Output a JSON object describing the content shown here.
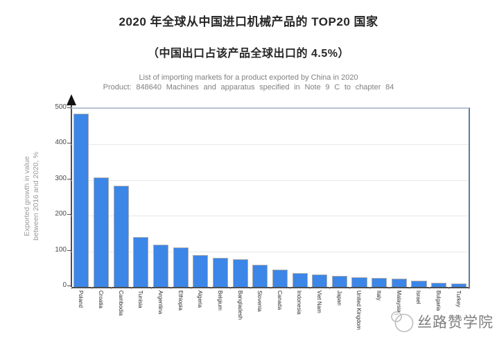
{
  "header": {
    "title": "2020 年全球从中国进口机械产品的 TOP20 国家",
    "subtitle": "（中国出口占该产品全球出口的 4.5%）"
  },
  "chart_data": {
    "type": "bar",
    "title": "List of importing markets for a product exported by China in 2020",
    "subtitle": "Product: 848640 Machines and apparatus specified in Note 9 C to chapter 84",
    "ylabel": "Exported growth in value between 2016 and 2020, %",
    "ylabel_lines": [
      "Exported growth in value",
      "between 2016 and 2020,  %"
    ],
    "categories": [
      "Poland",
      "Croatia",
      "Cambodia",
      "Tunisia",
      "Argentina",
      "Ethiopia",
      "Algeria",
      "Belgium",
      "Bangladesh",
      "Slovenia",
      "Canada",
      "Indonesia",
      "Viet Nam",
      "Japan",
      "United Kingdom",
      "Italy",
      "Malaysia",
      "Israel",
      "Bulgaria",
      "Turkey"
    ],
    "values": [
      487,
      308,
      285,
      140,
      119,
      110,
      90,
      82,
      77,
      62,
      48,
      38,
      35,
      31,
      27,
      26,
      23,
      18,
      12,
      9
    ],
    "xlabel": "",
    "ylim": [
      0,
      500
    ],
    "yticks": [
      0,
      100,
      200,
      300,
      400,
      500
    ],
    "grid": "horizontal",
    "legend": false,
    "bar_color": "#3c86e8",
    "bar_border_color": "#adadad",
    "gridline_color": "#e8e8e8",
    "frame_top_color": "#b7c3d4",
    "frame_right_color": "#5e7d95",
    "axis_color": "#4d4d4d"
  },
  "watermark": {
    "text": "丝路赞学院",
    "icon": "silk-road-academy-logo-icon"
  }
}
